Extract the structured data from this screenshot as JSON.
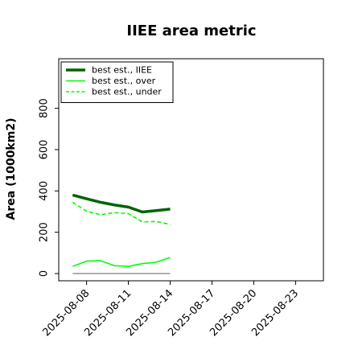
{
  "chart_data": {
    "type": "line",
    "title": "IIEE area metric",
    "xlabel": "",
    "ylabel": "Area (1000km2)",
    "x": [
      "2025-08-07",
      "2025-08-08",
      "2025-08-09",
      "2025-08-10",
      "2025-08-11",
      "2025-08-12",
      "2025-08-13",
      "2025-08-14"
    ],
    "xticks": [
      "2025-08-08",
      "2025-08-11",
      "2025-08-14",
      "2025-08-17",
      "2025-08-20",
      "2025-08-23"
    ],
    "xlim": [
      "2025-08-06",
      "2025-08-25"
    ],
    "yticks": [
      0,
      200,
      400,
      600,
      800
    ],
    "ylim": [
      -35,
      1040
    ],
    "legend_position": "upper-left",
    "grid": false,
    "series": [
      {
        "name": "best est., IIEE",
        "color": "#006400",
        "style": "solid-thick",
        "values": [
          380,
          362,
          345,
          332,
          322,
          298,
          305,
          312
        ]
      },
      {
        "name": "best est., over",
        "color": "#00ff00",
        "style": "solid",
        "values": [
          35,
          60,
          62,
          38,
          35,
          48,
          55,
          78
        ]
      },
      {
        "name": "best est., under",
        "color": "#00ff00",
        "style": "dashed",
        "values": [
          345,
          302,
          285,
          295,
          290,
          250,
          252,
          238
        ]
      },
      {
        "name": "",
        "color": "#808080",
        "style": "solid-thin",
        "values": [
          0,
          0,
          0,
          0,
          0,
          0,
          0,
          0
        ]
      }
    ]
  }
}
